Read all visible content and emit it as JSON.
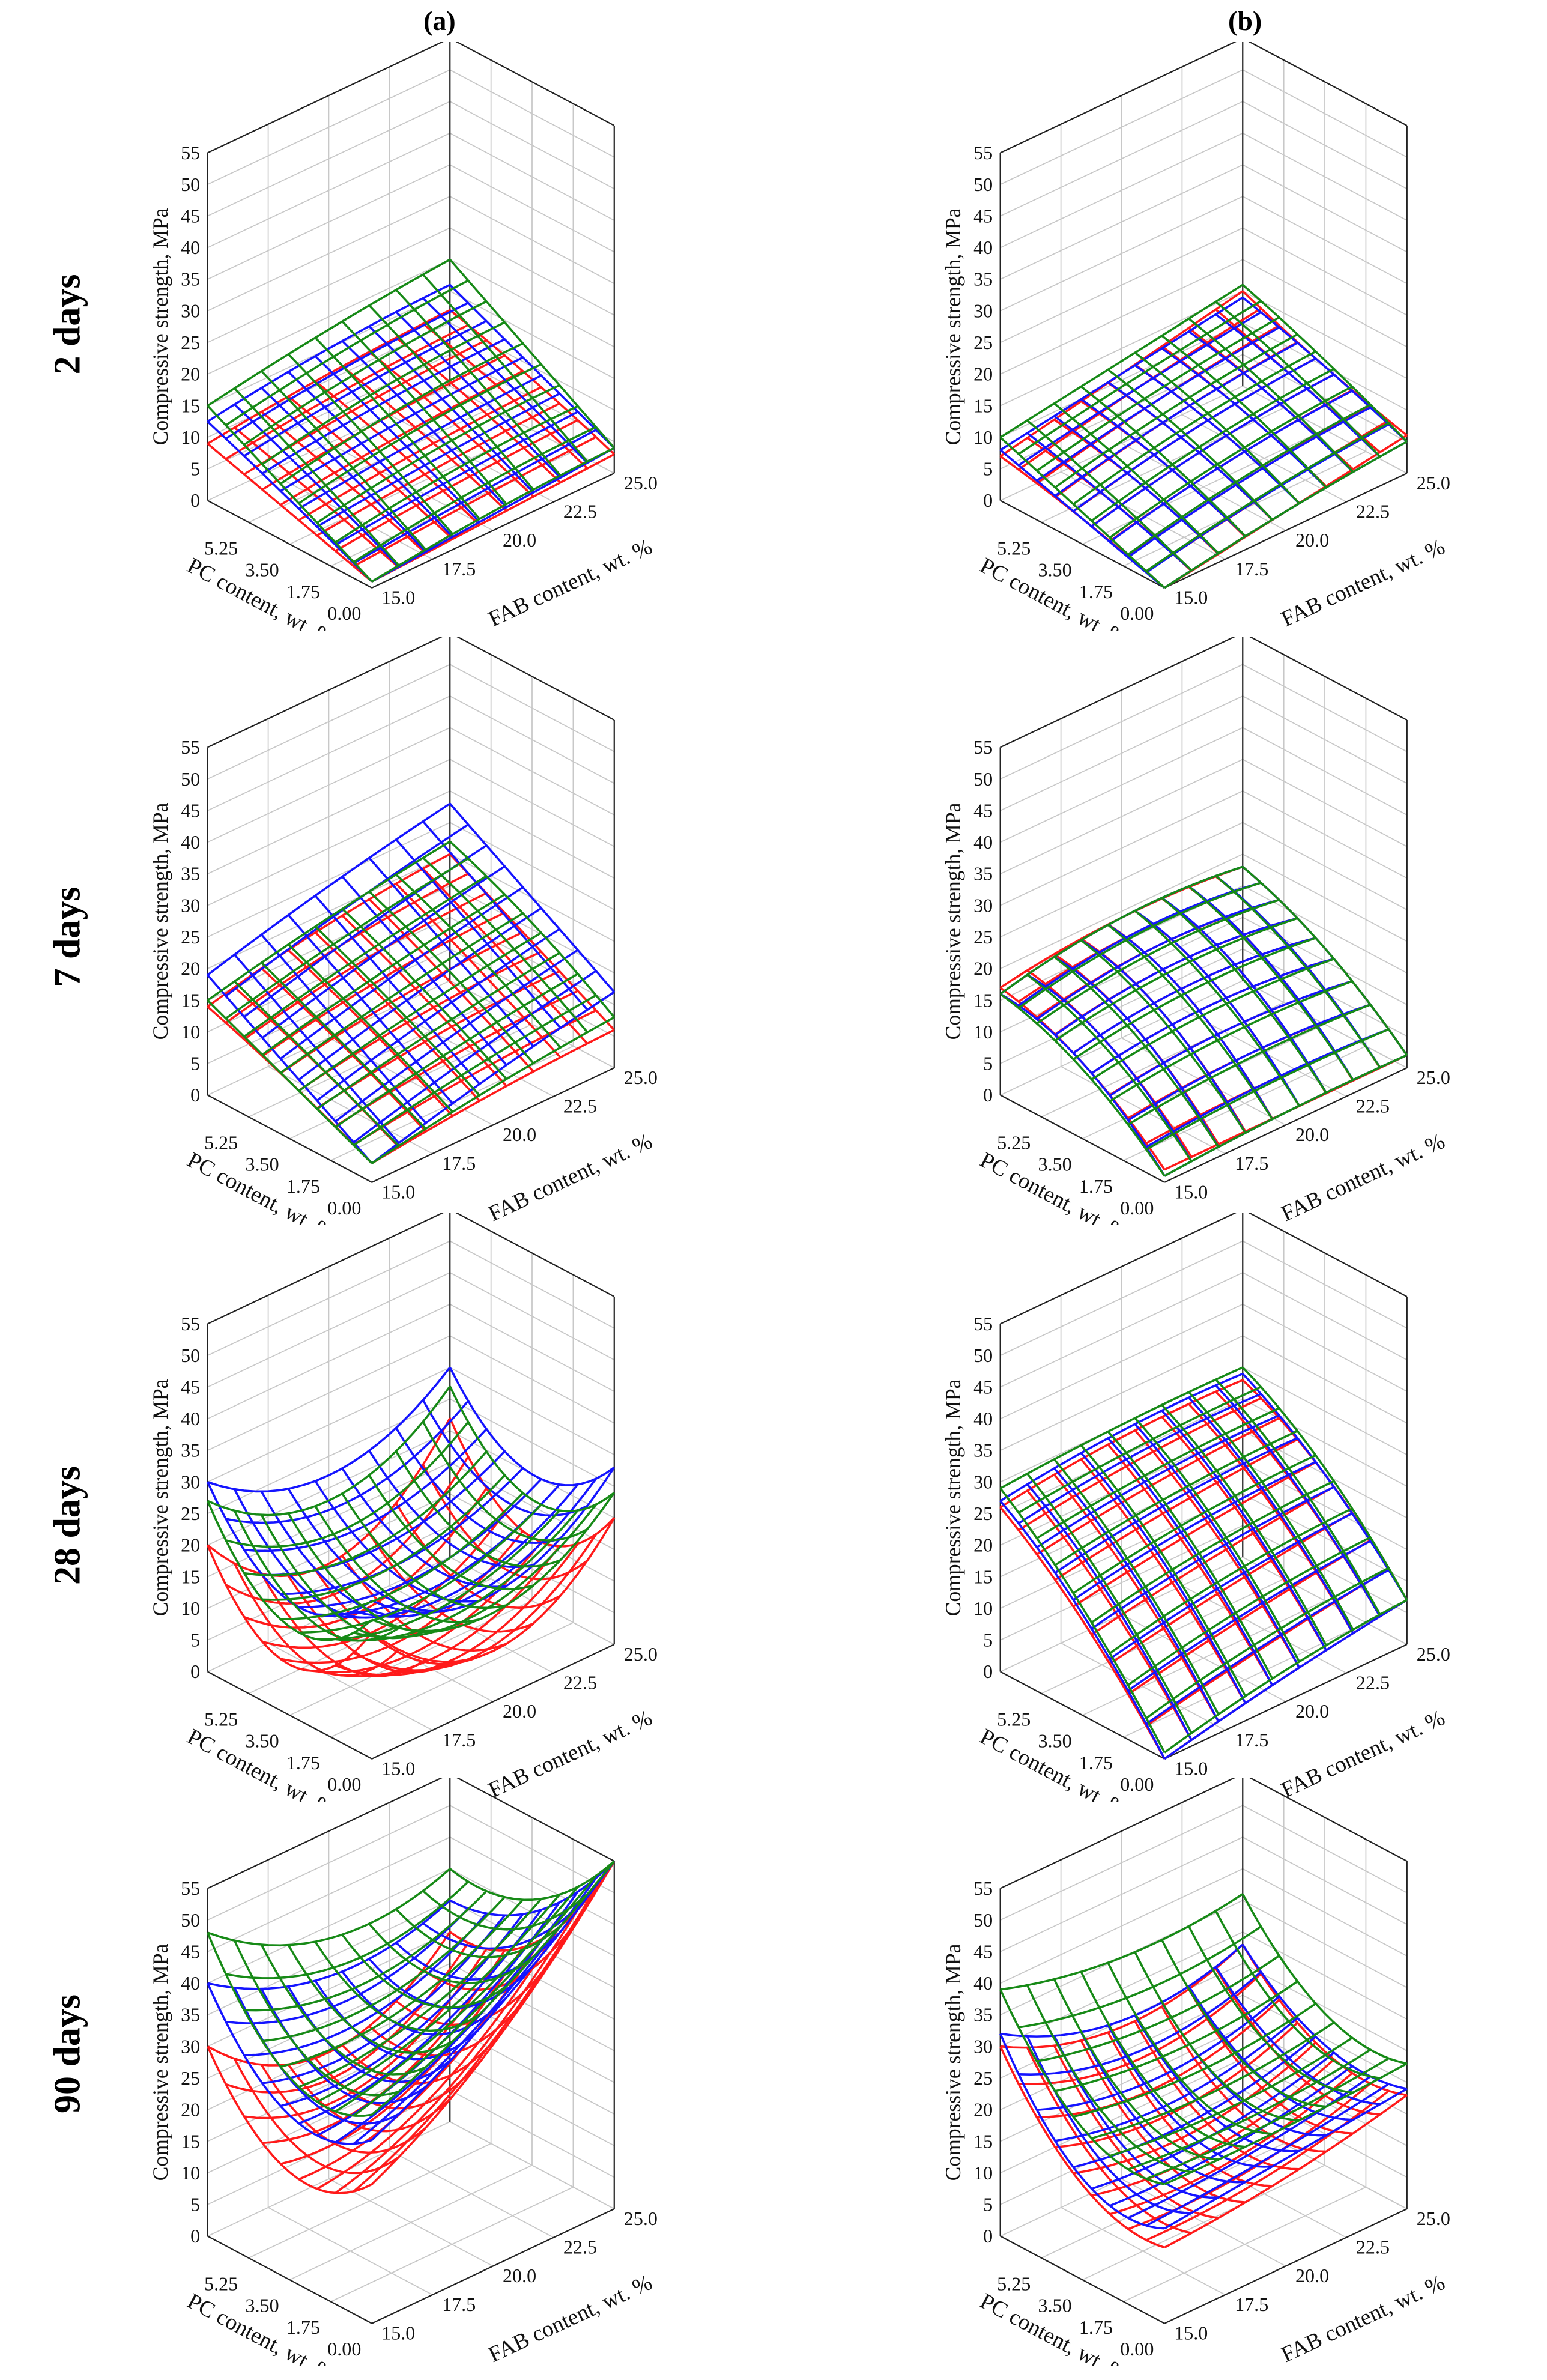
{
  "column_labels": [
    "(a)",
    "(b)"
  ],
  "row_labels": [
    "2 days",
    "7 days",
    "28 days",
    "90 days"
  ],
  "colors": {
    "red": "#ff1a1a",
    "blue": "#1414ff",
    "green": "#178a17",
    "grid": "#c8c8c8",
    "axis": "#222222"
  },
  "chart_data": [
    {
      "panel": "a",
      "age": "2 days",
      "type": "surface",
      "zlabel": "Compressive strength, MPa",
      "xlabel": "PC content, wt. %",
      "ylabel": "FAB content, wt. %",
      "zlim": [
        0,
        55
      ],
      "zticks": [
        "0",
        "5",
        "10",
        "15",
        "20",
        "25",
        "30",
        "35",
        "40",
        "45",
        "50",
        "55"
      ],
      "xticks": [
        "0.00",
        "1.75",
        "3.50",
        "5.25"
      ],
      "yticks": [
        "15.0",
        "17.5",
        "20.0",
        "22.5",
        "25.0"
      ],
      "grid_pc": [
        0,
        3.5,
        7
      ],
      "grid_fab": [
        15,
        20,
        25
      ],
      "series": [
        {
          "color": "red",
          "z": [
            [
              1,
              2,
              3
            ],
            [
              5,
              7,
              8
            ],
            [
              9,
              11,
              12
            ]
          ]
        },
        {
          "color": "blue",
          "z": [
            [
              1,
              2.5,
              4
            ],
            [
              7,
              9,
              10
            ],
            [
              12.5,
              15,
              16
            ]
          ]
        },
        {
          "color": "green",
          "z": [
            [
              1,
              3,
              4
            ],
            [
              8,
              11,
              12
            ],
            [
              15,
              18,
              20
            ]
          ]
        }
      ]
    },
    {
      "panel": "b",
      "age": "2 days",
      "type": "surface",
      "zlabel": "Compressive strength, MPa",
      "xlabel": "PC content, wt. %",
      "ylabel": "FAB content, wt. %",
      "zlim": [
        0,
        55
      ],
      "zticks": [
        "0",
        "5",
        "10",
        "15",
        "20",
        "25",
        "30",
        "35",
        "40",
        "45",
        "50",
        "55"
      ],
      "xticks": [
        "0.00",
        "1.75",
        "3.50",
        "5.25"
      ],
      "yticks": [
        "15.0",
        "17.5",
        "20.0",
        "22.5",
        "25.0"
      ],
      "grid_pc": [
        0,
        3.5,
        7
      ],
      "grid_fab": [
        15,
        20,
        25
      ],
      "series": [
        {
          "color": "red",
          "z": [
            [
              0,
              3,
              6
            ],
            [
              4,
              8,
              10
            ],
            [
              7,
              11,
              15
            ]
          ]
        },
        {
          "color": "blue",
          "z": [
            [
              0,
              3,
              5
            ],
            [
              4,
              8,
              10
            ],
            [
              8,
              11,
              14
            ]
          ]
        },
        {
          "color": "green",
          "z": [
            [
              0,
              3,
              5
            ],
            [
              5,
              9,
              11
            ],
            [
              10,
              13,
              16
            ]
          ]
        }
      ]
    },
    {
      "panel": "a",
      "age": "7 days",
      "type": "surface",
      "zlabel": "Compressive strength, MPa",
      "xlabel": "PC content, wt. %",
      "ylabel": "FAB content, wt. %",
      "zlim": [
        0,
        55
      ],
      "zticks": [
        "0",
        "5",
        "10",
        "15",
        "20",
        "25",
        "30",
        "35",
        "40",
        "45",
        "50",
        "55"
      ],
      "xticks": [
        "0.00",
        "1.75",
        "3.50",
        "5.25"
      ],
      "yticks": [
        "15.0",
        "17.5",
        "20.0",
        "22.5",
        "25.0"
      ],
      "grid_pc": [
        0,
        3.5,
        7
      ],
      "grid_fab": [
        15,
        20,
        25
      ],
      "series": [
        {
          "color": "red",
          "z": [
            [
              3,
              5,
              6
            ],
            [
              9,
              12,
              13
            ],
            [
              14,
              18,
              20
            ]
          ]
        },
        {
          "color": "blue",
          "z": [
            [
              3,
              8,
              12
            ],
            [
              11,
              16,
              20
            ],
            [
              19,
              24,
              28
            ]
          ]
        },
        {
          "color": "green",
          "z": [
            [
              3,
              6,
              8
            ],
            [
              9,
              13,
              16
            ],
            [
              15,
              19,
              22
            ]
          ]
        }
      ]
    },
    {
      "panel": "b",
      "age": "7 days",
      "type": "surface",
      "zlabel": "Compressive strength, MPa",
      "xlabel": "PC content, wt. %",
      "ylabel": "FAB content, wt. %",
      "zlim": [
        0,
        55
      ],
      "zticks": [
        "0",
        "5",
        "10",
        "15",
        "20",
        "25",
        "30",
        "35",
        "40",
        "45",
        "50",
        "55"
      ],
      "xticks": [
        "0.00",
        "1.75",
        "3.50",
        "5.25"
      ],
      "yticks": [
        "15.0",
        "17.5",
        "20.0",
        "22.5",
        "25.0"
      ],
      "grid_pc": [
        0,
        3.5,
        7
      ],
      "grid_fab": [
        15,
        20,
        25
      ],
      "series": [
        {
          "color": "red",
          "z": [
            [
              2,
              2,
              2
            ],
            [
              12,
              14,
              12
            ],
            [
              17,
              19,
              18
            ]
          ]
        },
        {
          "color": "blue",
          "z": [
            [
              1,
              2,
              2
            ],
            [
              12,
              14,
              12
            ],
            [
              16,
              19,
              18
            ]
          ]
        },
        {
          "color": "green",
          "z": [
            [
              1,
              2,
              2
            ],
            [
              11,
              13,
              12
            ],
            [
              16,
              19,
              18
            ]
          ]
        }
      ]
    },
    {
      "panel": "a",
      "age": "28 days",
      "type": "surface",
      "zlabel": "Compressive strength, MPa",
      "xlabel": "PC content, wt. %",
      "ylabel": "FAB content, wt. %",
      "zlim": [
        0,
        55
      ],
      "zticks": [
        "0",
        "5",
        "10",
        "15",
        "20",
        "25",
        "30",
        "35",
        "40",
        "45",
        "50",
        "55"
      ],
      "xticks": [
        "0.00",
        "1.75",
        "3.50",
        "5.25"
      ],
      "yticks": [
        "15.0",
        "17.5",
        "20.0",
        "22.5",
        "25.0"
      ],
      "grid_pc": [
        0,
        3.5,
        7
      ],
      "grid_fab": [
        15,
        20,
        25
      ],
      "series": [
        {
          "color": "red",
          "z": [
            [
              20,
              8,
              20
            ],
            [
              8,
              2,
              10
            ],
            [
              20,
              8,
              22
            ]
          ]
        },
        {
          "color": "blue",
          "z": [
            [
              25,
              17,
              28
            ],
            [
              18,
              14,
              20
            ],
            [
              30,
              22,
              30
            ]
          ]
        },
        {
          "color": "green",
          "z": [
            [
              22,
              14,
              24
            ],
            [
              14,
              10,
              16
            ],
            [
              27,
              18,
              27
            ]
          ]
        }
      ]
    },
    {
      "panel": "b",
      "age": "28 days",
      "type": "surface",
      "zlabel": "Compressive strength, MPa",
      "xlabel": "PC content, wt. %",
      "ylabel": "FAB content, wt. %",
      "zlim": [
        0,
        55
      ],
      "zticks": [
        "0",
        "5",
        "10",
        "15",
        "20",
        "25",
        "30",
        "35",
        "40",
        "45",
        "50",
        "55"
      ],
      "xticks": [
        "0.00",
        "1.75",
        "3.50",
        "5.25"
      ],
      "yticks": [
        "15.0",
        "17.5",
        "20.0",
        "22.5",
        "25.0"
      ],
      "grid_pc": [
        0,
        3.5,
        7
      ],
      "grid_fab": [
        15,
        20,
        25
      ],
      "series": [
        {
          "color": "red",
          "z": [
            [
              0,
              4,
              7
            ],
            [
              15,
              18,
              20
            ],
            [
              26,
              28,
              28
            ]
          ]
        },
        {
          "color": "blue",
          "z": [
            [
              0,
              4,
              7
            ],
            [
              16,
              19,
              20
            ],
            [
              27,
              29,
              29
            ]
          ]
        },
        {
          "color": "green",
          "z": [
            [
              1,
              5,
              7
            ],
            [
              17,
              20,
              21
            ],
            [
              29,
              30,
              30
            ]
          ]
        }
      ]
    },
    {
      "panel": "a",
      "age": "90 days",
      "type": "surface",
      "zlabel": "Compressive strength, MPa",
      "xlabel": "PC content, wt. %",
      "ylabel": "FAB content, wt. %",
      "zlim": [
        0,
        55
      ],
      "zticks": [
        "0",
        "5",
        "10",
        "15",
        "20",
        "25",
        "30",
        "35",
        "40",
        "45",
        "50",
        "55"
      ],
      "xticks": [
        "0.00",
        "1.75",
        "3.50",
        "5.25"
      ],
      "yticks": [
        "15.0",
        "17.5",
        "20.0",
        "22.5",
        "25.0"
      ],
      "grid_pc": [
        0,
        3.5,
        7
      ],
      "grid_fab": [
        15,
        20,
        25
      ],
      "series": [
        {
          "color": "red",
          "z": [
            [
              22,
              35,
              55
            ],
            [
              17,
              20,
              35
            ],
            [
              30,
              20,
              30
            ]
          ]
        },
        {
          "color": "blue",
          "z": [
            [
              29,
              40,
              55
            ],
            [
              26,
              28,
              40
            ],
            [
              40,
              32,
              35
            ]
          ]
        },
        {
          "color": "green",
          "z": [
            [
              33,
              42,
              55
            ],
            [
              32,
              33,
              42
            ],
            [
              48,
              38,
              40
            ]
          ]
        }
      ]
    },
    {
      "panel": "b",
      "age": "90 days",
      "type": "surface",
      "zlabel": "Compressive strength, MPa",
      "xlabel": "PC content, wt. %",
      "ylabel": "FAB content, wt. %",
      "zlim": [
        0,
        55
      ],
      "zticks": [
        "0",
        "5",
        "10",
        "15",
        "20",
        "25",
        "30",
        "35",
        "40",
        "45",
        "50",
        "55"
      ],
      "xticks": [
        "0.00",
        "1.75",
        "3.50",
        "5.25"
      ],
      "yticks": [
        "15.0",
        "17.5",
        "20.0",
        "22.5",
        "25.0"
      ],
      "grid_pc": [
        0,
        3.5,
        7
      ],
      "grid_fab": [
        15,
        20,
        25
      ],
      "series": [
        {
          "color": "red",
          "z": [
            [
              12,
              14,
              18
            ],
            [
              15,
              13,
              18
            ],
            [
              30,
              24,
              28
            ]
          ]
        },
        {
          "color": "blue",
          "z": [
            [
              15,
              17,
              19
            ],
            [
              16,
              15,
              19
            ],
            [
              32,
              25,
              28
            ]
          ]
        },
        {
          "color": "green",
          "z": [
            [
              22,
              22,
              23
            ],
            [
              24,
              22,
              24
            ],
            [
              39,
              35,
              36
            ]
          ]
        }
      ]
    }
  ]
}
